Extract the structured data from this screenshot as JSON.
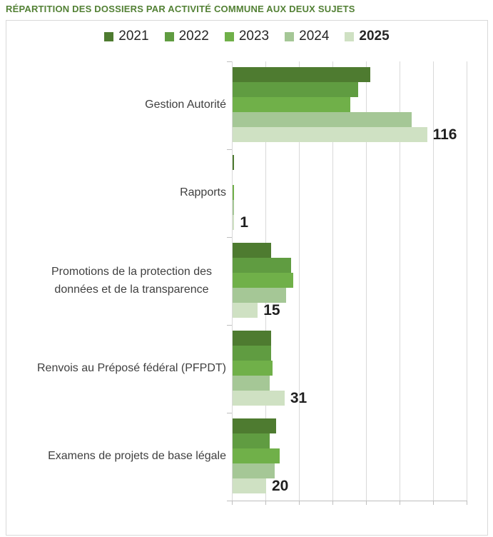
{
  "title": "RÉPARTITION DES DOSSIERS PAR ACTIVITÉ COMMUNE AUX DEUX SUJETS",
  "title_color": "#538135",
  "chart_data": {
    "type": "bar",
    "orientation": "horizontal",
    "title": "RÉPARTITION DES DOSSIERS PAR ACTIVITÉ COMMUNE AUX DEUX SUJETS",
    "categories": [
      "Gestion Autorité",
      "Rapports",
      "Promotions de la protection des données et de la transparence",
      "Renvois au Préposé fédéral (PFPDT)",
      "Examens de projets de base légale"
    ],
    "series": [
      {
        "name": "2021",
        "color": "#4e7b30",
        "values": [
          82,
          1,
          23,
          23,
          26
        ],
        "bold": false,
        "show_labels": false
      },
      {
        "name": "2022",
        "color": "#609c41",
        "values": [
          75,
          0,
          35,
          23,
          22
        ],
        "bold": false,
        "show_labels": false
      },
      {
        "name": "2023",
        "color": "#70b049",
        "values": [
          70,
          1,
          36,
          24,
          28
        ],
        "bold": false,
        "show_labels": false
      },
      {
        "name": "2024",
        "color": "#a5c796",
        "values": [
          107,
          1,
          32,
          22,
          25
        ],
        "bold": false,
        "show_labels": false
      },
      {
        "name": "2025",
        "color": "#cfe1c3",
        "values": [
          116,
          1,
          15,
          31,
          20
        ],
        "bold": true,
        "show_labels": true
      }
    ],
    "data_labels_2025": [
      "116",
      "1",
      "15",
      "31",
      "20"
    ],
    "xlabel": "",
    "ylabel": "",
    "xlim": [
      0,
      140
    ],
    "x_ticks": [
      "0",
      "20",
      "40",
      "60",
      "80",
      "100",
      "120",
      "140"
    ],
    "grid": "vertical",
    "legend_position": "top",
    "gridline_color": "#d9d9d9",
    "axis_color": "#bfbfbf",
    "tick_label_color": "#404040"
  }
}
